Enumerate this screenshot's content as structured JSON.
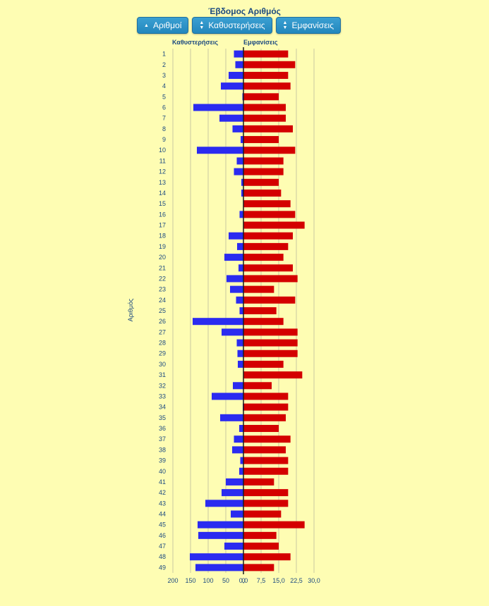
{
  "title": "Έβδομος Αριθμός",
  "toolbar": {
    "buttons": [
      {
        "label": "Αριθμοί",
        "icon": "sort-up-icon"
      },
      {
        "label": "Καθυστερήσεις",
        "icon": "sort-both-icon"
      },
      {
        "label": "Εμφανίσεις",
        "icon": "sort-both-icon"
      }
    ],
    "button_color": "#2a8fc4"
  },
  "chart_data": {
    "type": "bar",
    "orientation": "horizontal-diverging",
    "title": "Έβδομος Αριθμός",
    "ylabel": "Αριθμός",
    "categories": [
      "1",
      "2",
      "3",
      "4",
      "5",
      "6",
      "7",
      "8",
      "9",
      "10",
      "11",
      "12",
      "13",
      "14",
      "15",
      "16",
      "17",
      "18",
      "19",
      "20",
      "21",
      "22",
      "23",
      "24",
      "25",
      "26",
      "27",
      "28",
      "29",
      "30",
      "31",
      "32",
      "33",
      "34",
      "35",
      "36",
      "37",
      "38",
      "39",
      "40",
      "41",
      "42",
      "43",
      "44",
      "45",
      "46",
      "47",
      "48",
      "49"
    ],
    "series": [
      {
        "name": "Καθυστερήσεις",
        "color": "#2b2bf0",
        "axis_ticks": [
          "200",
          "150",
          "100",
          "50",
          "0"
        ],
        "xlim": [
          0,
          200
        ],
        "values": [
          27,
          23,
          42,
          64,
          3,
          142,
          68,
          31,
          8,
          132,
          19,
          27,
          6,
          6,
          1,
          11,
          1,
          42,
          18,
          54,
          14,
          48,
          38,
          21,
          11,
          144,
          62,
          19,
          17,
          16,
          1,
          30,
          90,
          2,
          66,
          12,
          27,
          32,
          9,
          12,
          50,
          62,
          108,
          36,
          130,
          128,
          54,
          152,
          136
        ]
      },
      {
        "name": "Εμφανίσεις",
        "color": "#d40000",
        "axis_ticks": [
          "0,0",
          "7,5",
          "15,0",
          "22,5",
          "30,0"
        ],
        "xlim": [
          0,
          30
        ],
        "values": [
          19,
          22,
          19,
          20,
          15,
          18,
          18,
          21,
          15,
          22,
          17,
          17,
          15,
          16,
          20,
          22,
          26,
          21,
          19,
          17,
          21,
          23,
          13,
          22,
          14,
          17,
          23,
          23,
          23,
          17,
          25,
          12,
          19,
          19,
          18,
          15,
          20,
          18,
          19,
          19,
          13,
          19,
          19,
          16,
          26,
          14,
          15,
          20,
          13
        ]
      }
    ],
    "grid": true
  }
}
